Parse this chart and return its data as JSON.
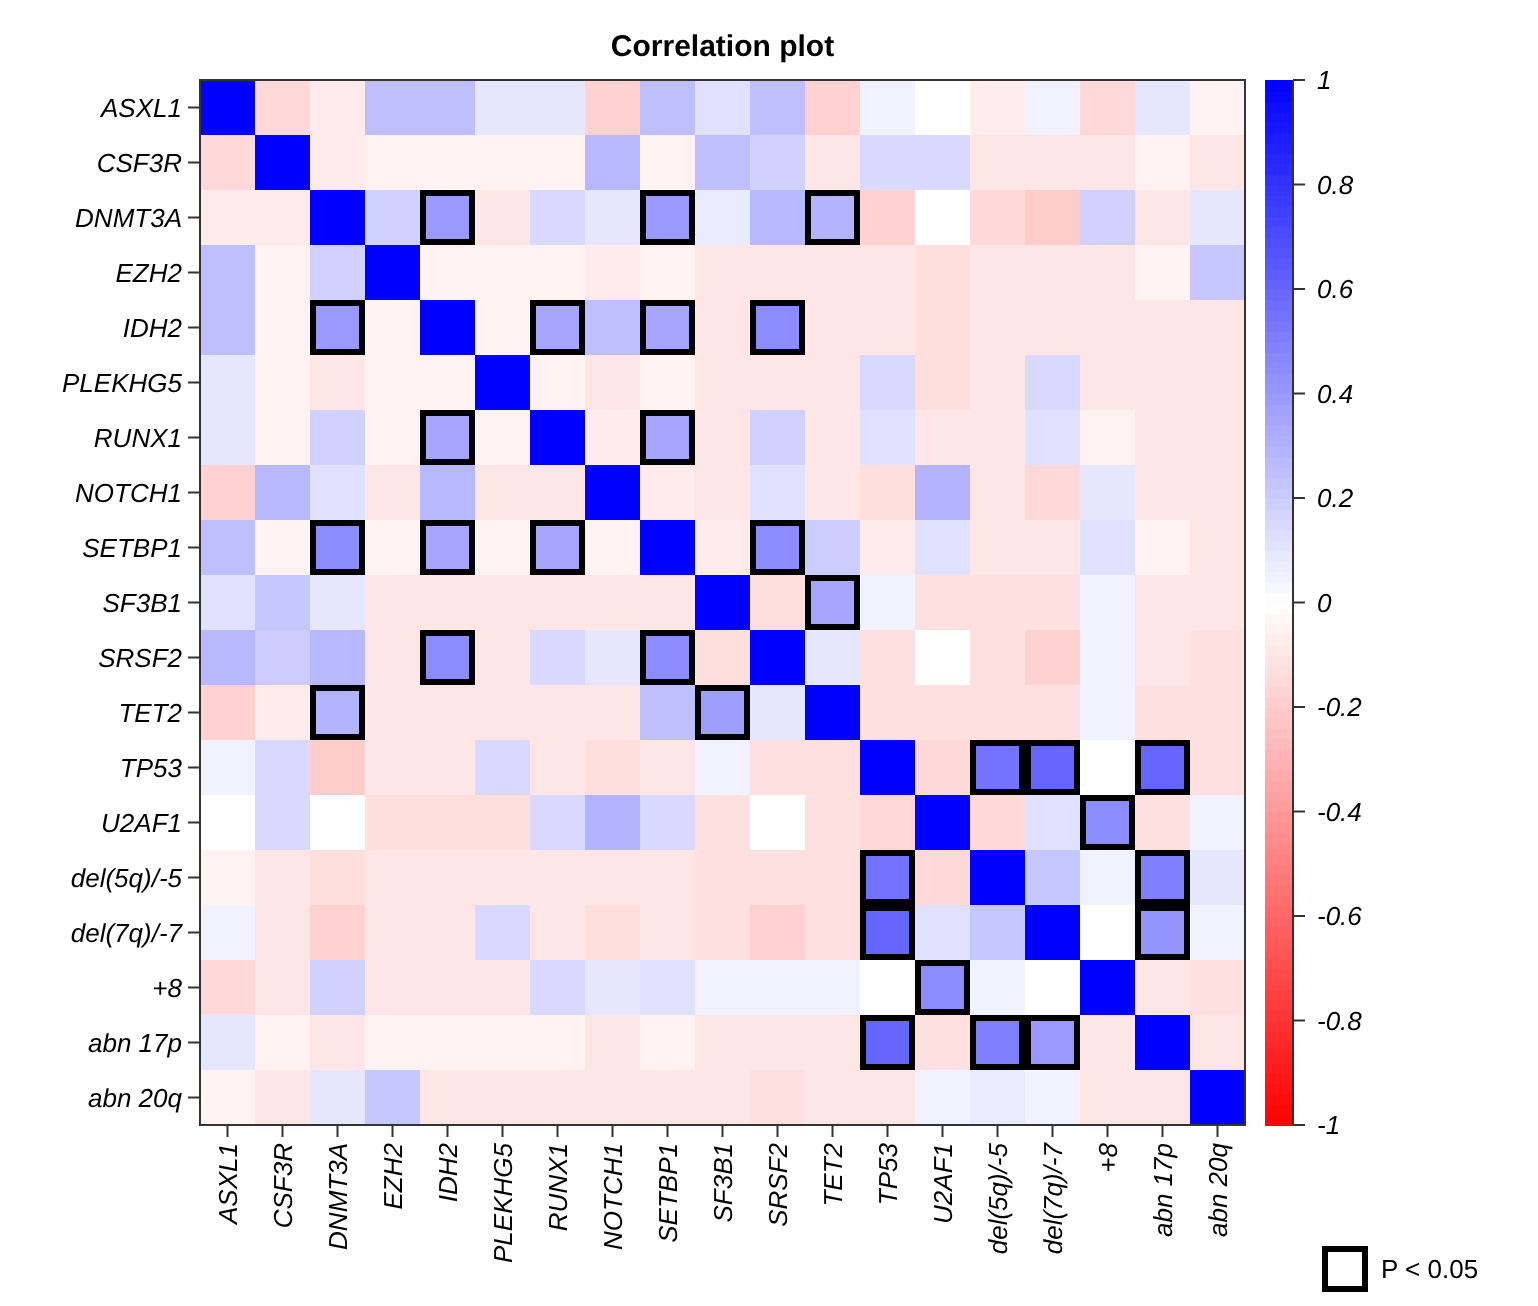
{
  "chart_data": {
    "type": "heatmap",
    "title": "Correlation plot",
    "categories": [
      "ASXL1",
      "CSF3R",
      "DNMT3A",
      "EZH2",
      "IDH2",
      "PLEKHG5",
      "RUNX1",
      "NOTCH1",
      "SETBP1",
      "SF3B1",
      "SRSF2",
      "TET2",
      "TP53",
      "U2AF1",
      "del(5q)/-5",
      "del(7q)/-7",
      "+8",
      "abn 17p",
      "abn 20q"
    ],
    "y_categories": [
      "ASXL1",
      "CSF3R",
      "DNMT3A",
      "EZH2",
      "IDH2",
      "PLEKHG5",
      "RUNX1",
      "NOTCH1",
      "SETBP1",
      "SF3B1",
      "SRSF2",
      "TET2",
      "TP53",
      "U2AF1",
      "del(5q)/-5",
      "del(7q)/-7",
      "+8",
      "abn 17p",
      "abn 20q"
    ],
    "cells": [
      [
        1,
        -0.15,
        -0.08,
        0.25,
        0.25,
        0.1,
        0.1,
        -0.18,
        0.25,
        0.12,
        0.25,
        -0.18,
        0.05,
        0,
        -0.07,
        0.05,
        -0.15,
        0.1,
        -0.05
      ],
      [
        -0.15,
        1,
        -0.08,
        -0.05,
        -0.05,
        -0.05,
        -0.05,
        0.28,
        -0.05,
        0.25,
        0.18,
        -0.1,
        0.15,
        0.15,
        -0.1,
        -0.1,
        -0.1,
        -0.05,
        -0.1
      ],
      [
        -0.08,
        -0.08,
        1,
        0.18,
        0.4,
        -0.1,
        0.15,
        0.1,
        0.4,
        0.08,
        0.28,
        0.3,
        -0.18,
        0,
        -0.15,
        -0.2,
        0.18,
        -0.1,
        0.1
      ],
      [
        0.25,
        -0.05,
        0.18,
        1,
        -0.05,
        -0.05,
        -0.05,
        -0.08,
        -0.05,
        -0.1,
        -0.1,
        -0.1,
        -0.1,
        -0.13,
        -0.1,
        -0.1,
        -0.1,
        -0.05,
        0.22
      ],
      [
        0.25,
        -0.05,
        0.4,
        -0.05,
        1,
        -0.05,
        0.35,
        0.25,
        0.35,
        -0.1,
        0.45,
        -0.1,
        -0.1,
        -0.13,
        -0.1,
        -0.1,
        -0.1,
        -0.1,
        -0.1
      ],
      [
        0.1,
        -0.05,
        -0.1,
        -0.05,
        -0.05,
        1,
        -0.05,
        -0.1,
        -0.05,
        -0.1,
        -0.1,
        -0.1,
        0.15,
        -0.13,
        -0.1,
        0.15,
        -0.1,
        -0.1,
        -0.1
      ],
      [
        0.1,
        -0.05,
        0.18,
        -0.05,
        0.35,
        -0.05,
        1,
        -0.08,
        0.35,
        -0.1,
        0.18,
        -0.1,
        0.12,
        -0.1,
        -0.1,
        0.12,
        -0.05,
        -0.1,
        -0.1
      ],
      [
        -0.18,
        0.28,
        0.12,
        -0.1,
        0.28,
        -0.1,
        -0.1,
        1,
        -0.08,
        -0.1,
        0.12,
        -0.1,
        -0.13,
        0.3,
        -0.1,
        -0.15,
        0.1,
        -0.1,
        -0.1
      ],
      [
        0.25,
        -0.05,
        0.45,
        -0.05,
        0.35,
        -0.05,
        0.35,
        -0.05,
        1,
        -0.08,
        0.45,
        0.2,
        -0.08,
        0.12,
        -0.1,
        -0.1,
        0.12,
        -0.05,
        -0.1
      ],
      [
        0.12,
        0.22,
        0.1,
        -0.1,
        -0.1,
        -0.1,
        -0.1,
        -0.1,
        -0.1,
        1,
        -0.13,
        0.35,
        0.05,
        -0.12,
        -0.12,
        -0.12,
        0.05,
        -0.1,
        -0.1
      ],
      [
        0.28,
        0.2,
        0.28,
        -0.1,
        0.45,
        -0.1,
        0.15,
        0.1,
        0.45,
        -0.13,
        1,
        0.1,
        -0.12,
        0,
        -0.12,
        -0.18,
        0.05,
        -0.1,
        -0.12
      ],
      [
        -0.18,
        -0.08,
        0.3,
        -0.1,
        -0.1,
        -0.1,
        -0.1,
        -0.1,
        0.25,
        0.38,
        0.1,
        1,
        -0.12,
        -0.12,
        -0.12,
        -0.12,
        0.05,
        -0.12,
        -0.12
      ],
      [
        0.05,
        0.15,
        -0.2,
        -0.1,
        -0.1,
        0.15,
        -0.1,
        -0.13,
        -0.1,
        0.05,
        -0.12,
        -0.12,
        1,
        -0.15,
        0.55,
        0.6,
        0,
        0.6,
        -0.12
      ],
      [
        0,
        0.15,
        0,
        -0.13,
        -0.13,
        -0.13,
        0.15,
        0.3,
        0.15,
        -0.12,
        0,
        -0.12,
        -0.15,
        1,
        -0.15,
        0.12,
        0.45,
        -0.12,
        0.05
      ],
      [
        -0.05,
        -0.1,
        -0.13,
        -0.1,
        -0.1,
        -0.1,
        -0.1,
        -0.1,
        -0.1,
        -0.12,
        -0.12,
        -0.12,
        0.55,
        -0.15,
        1,
        0.22,
        0.05,
        0.5,
        0.1
      ],
      [
        0.05,
        -0.1,
        -0.18,
        -0.1,
        -0.1,
        0.15,
        -0.1,
        -0.13,
        -0.1,
        -0.12,
        -0.18,
        -0.12,
        0.6,
        0.12,
        0.22,
        1,
        0,
        0.42,
        0.05
      ],
      [
        -0.15,
        -0.1,
        0.18,
        -0.1,
        -0.1,
        -0.1,
        0.15,
        0.1,
        0.12,
        0.05,
        0.05,
        0.05,
        0,
        0.45,
        0.05,
        0,
        1,
        -0.1,
        -0.12
      ],
      [
        0.1,
        -0.05,
        -0.1,
        -0.05,
        -0.05,
        -0.05,
        -0.05,
        -0.1,
        -0.05,
        -0.1,
        -0.1,
        -0.1,
        0.6,
        -0.12,
        0.5,
        0.4,
        -0.1,
        1,
        -0.1
      ],
      [
        -0.05,
        -0.1,
        0.1,
        0.22,
        -0.1,
        -0.1,
        -0.1,
        -0.1,
        -0.1,
        -0.1,
        -0.12,
        -0.1,
        -0.1,
        0.05,
        0.08,
        0.05,
        -0.1,
        -0.1,
        1
      ]
    ],
    "clim": [
      -1,
      1
    ],
    "cticks": [
      -1,
      -0.8,
      -0.6,
      -0.4,
      -0.2,
      0,
      0.2,
      0.4,
      0.6,
      0.8,
      1
    ],
    "annotations": [
      "P < 0.05",
      {
        "x": "IDH2",
        "y": "DNMT3A"
      },
      {
        "x": "SETBP1",
        "y": "DNMT3A"
      },
      {
        "x": "TET2",
        "y": "DNMT3A"
      },
      {
        "x": "DNMT3A",
        "y": "IDH2"
      },
      {
        "x": "RUNX1",
        "y": "IDH2"
      },
      {
        "x": "SETBP1",
        "y": "IDH2"
      },
      {
        "x": "SRSF2",
        "y": "IDH2"
      },
      {
        "x": "IDH2",
        "y": "RUNX1"
      },
      {
        "x": "SETBP1",
        "y": "RUNX1"
      },
      {
        "x": "DNMT3A",
        "y": "SETBP1"
      },
      {
        "x": "IDH2",
        "y": "SETBP1"
      },
      {
        "x": "RUNX1",
        "y": "SETBP1"
      },
      {
        "x": "SRSF2",
        "y": "SETBP1"
      },
      {
        "x": "TET2",
        "y": "SF3B1"
      },
      {
        "x": "IDH2",
        "y": "SRSF2"
      },
      {
        "x": "SETBP1",
        "y": "SRSF2"
      },
      {
        "x": "DNMT3A",
        "y": "TET2"
      },
      {
        "x": "SF3B1",
        "y": "TET2"
      },
      {
        "x": "del(5q)/-5",
        "y": "TP53"
      },
      {
        "x": "del(7q)/-7",
        "y": "TP53"
      },
      {
        "x": "abn 17p",
        "y": "TP53"
      },
      {
        "x": "+8",
        "y": "U2AF1"
      },
      {
        "x": "TP53",
        "y": "del(5q)/-5"
      },
      {
        "x": "abn 17p",
        "y": "del(5q)/-5"
      },
      {
        "x": "TP53",
        "y": "del(7q)/-7"
      },
      {
        "x": "abn 17p",
        "y": "del(7q)/-7"
      },
      {
        "x": "U2AF1",
        "y": "+8"
      },
      {
        "x": "TP53",
        "y": "abn 17p"
      },
      {
        "x": "del(5q)/-5",
        "y": "abn 17p"
      },
      {
        "x": "del(7q)/-7",
        "y": "abn 17p"
      }
    ]
  }
}
